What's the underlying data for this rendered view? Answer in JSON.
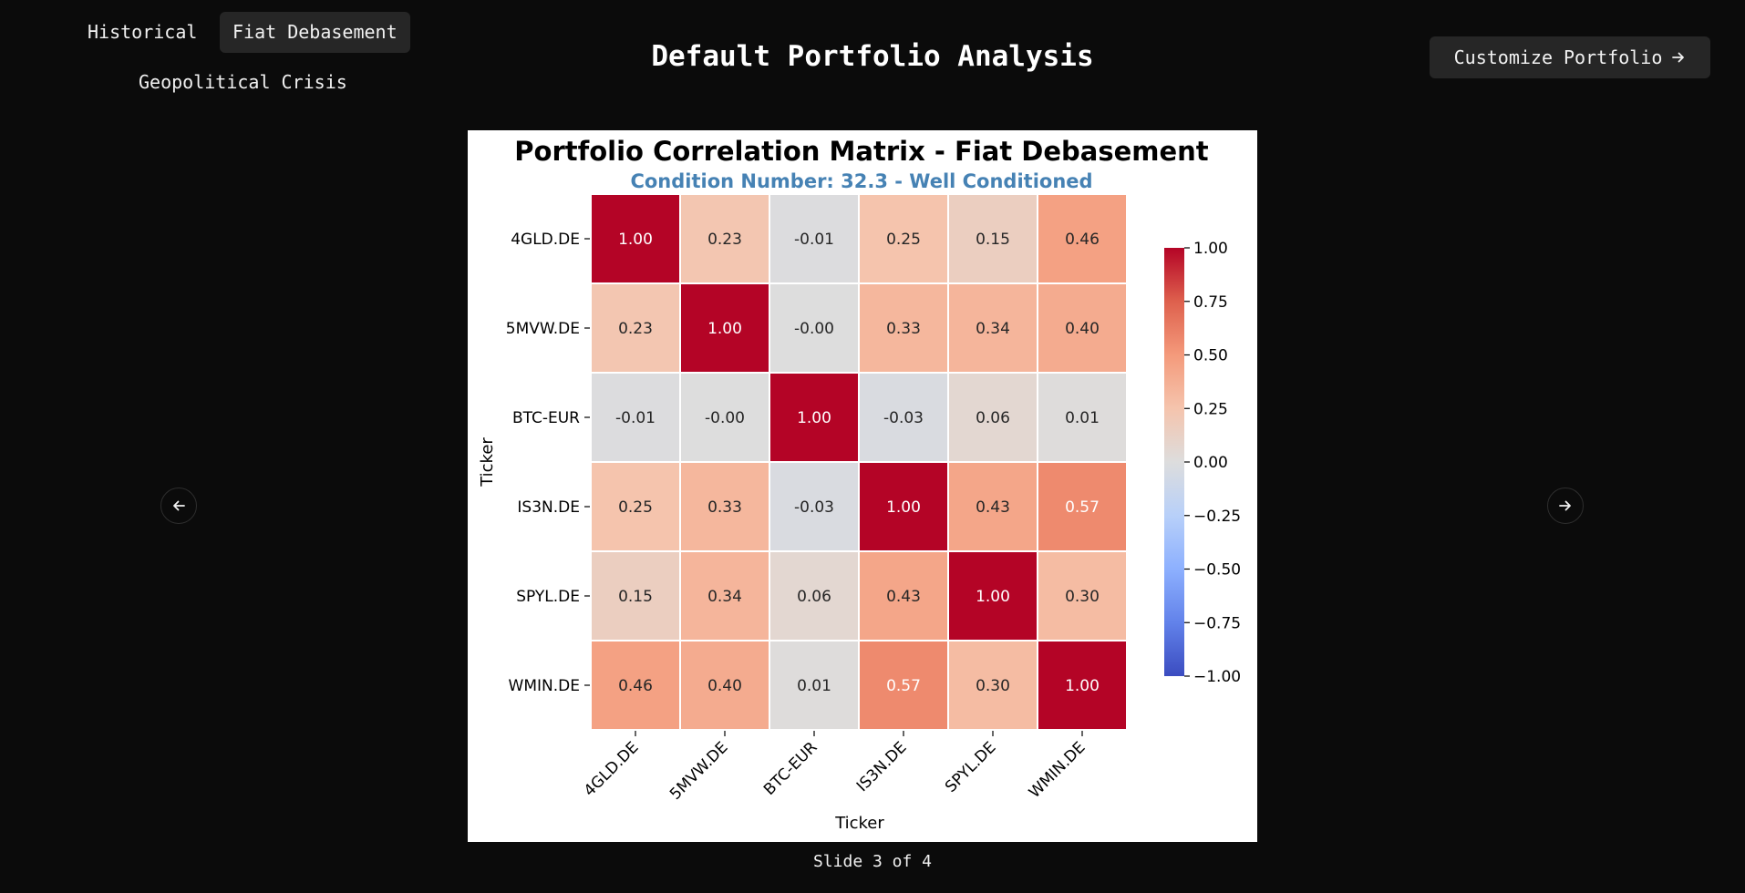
{
  "header": {
    "title": "Default Portfolio Analysis",
    "customize_label": "Customize Portfolio"
  },
  "tabs": [
    {
      "label": "Historical",
      "active": false
    },
    {
      "label": "Fiat Debasement",
      "active": true
    },
    {
      "label": "Geopolitical Crisis",
      "active": false
    }
  ],
  "icons": {
    "customize": "arrow-right-icon",
    "prev": "arrow-left-icon",
    "next": "arrow-right-icon"
  },
  "slide": {
    "text": "Slide 3 of 4",
    "current": 3,
    "total": 4
  },
  "chart_data": {
    "type": "heatmap",
    "title": "Portfolio Correlation Matrix - Fiat Debasement",
    "subtitle": "Condition Number: 32.3 - Well Conditioned",
    "subtitle_color": "#4682b4",
    "xlabel": "Ticker",
    "ylabel": "Ticker",
    "rows": [
      "4GLD.DE",
      "5MVW.DE",
      "BTC-EUR",
      "IS3N.DE",
      "SPYL.DE",
      "WMIN.DE"
    ],
    "cols": [
      "4GLD.DE",
      "5MVW.DE",
      "BTC-EUR",
      "IS3N.DE",
      "SPYL.DE",
      "WMIN.DE"
    ],
    "values": [
      [
        1.0,
        0.23,
        -0.01,
        0.25,
        0.15,
        0.46
      ],
      [
        0.23,
        1.0,
        -0.0,
        0.33,
        0.34,
        0.4
      ],
      [
        -0.01,
        -0.0,
        1.0,
        -0.03,
        0.06,
        0.01
      ],
      [
        0.25,
        0.33,
        -0.03,
        1.0,
        0.43,
        0.57
      ],
      [
        0.15,
        0.34,
        0.06,
        0.43,
        1.0,
        0.3
      ],
      [
        0.46,
        0.4,
        0.01,
        0.57,
        0.3,
        1.0
      ]
    ],
    "value_labels": [
      [
        "1.00",
        "0.23",
        "-0.01",
        "0.25",
        "0.15",
        "0.46"
      ],
      [
        "0.23",
        "1.00",
        "-0.00",
        "0.33",
        "0.34",
        "0.40"
      ],
      [
        "-0.01",
        "-0.00",
        "1.00",
        "-0.03",
        "0.06",
        "0.01"
      ],
      [
        "0.25",
        "0.33",
        "-0.03",
        "1.00",
        "0.43",
        "0.57"
      ],
      [
        "0.15",
        "0.34",
        "0.06",
        "0.43",
        "1.00",
        "0.30"
      ],
      [
        "0.46",
        "0.40",
        "0.01",
        "0.57",
        "0.30",
        "1.00"
      ]
    ],
    "colormap": "coolwarm",
    "vmin": -1.0,
    "vmax": 1.0,
    "colorbar_ticks": [
      "1.00",
      "0.75",
      "0.50",
      "0.25",
      "0.00",
      "−0.25",
      "−0.50",
      "−0.75",
      "−1.00"
    ],
    "colorbar_tick_values": [
      1.0,
      0.75,
      0.5,
      0.25,
      0.0,
      -0.25,
      -0.5,
      -0.75,
      -1.0
    ]
  }
}
